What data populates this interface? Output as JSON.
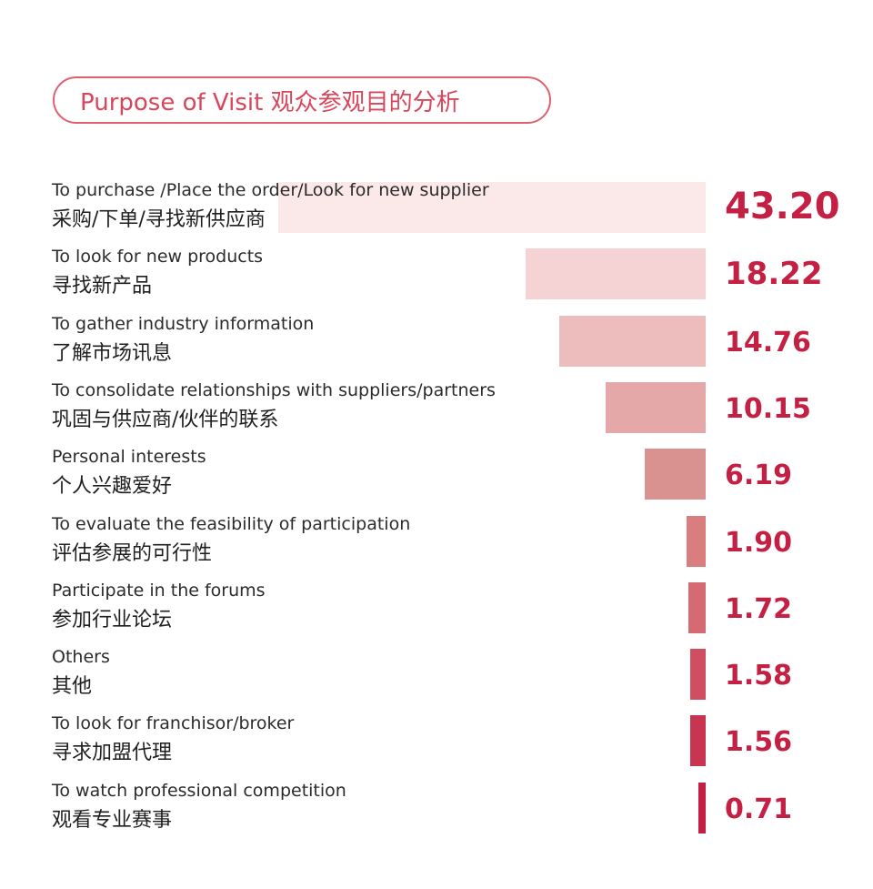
{
  "title": "Purpose of Visit 观众参观目的分析",
  "chart_data": {
    "type": "bar",
    "orientation": "horizontal",
    "title": "Purpose of Visit 观众参观目的分析",
    "categories": [
      {
        "en": "To purchase /Place the order/Look for new supplier",
        "zh": "采购/下单/寻找新供应商"
      },
      {
        "en": "To look for new products",
        "zh": "寻找新产品"
      },
      {
        "en": "To gather industry information",
        "zh": "了解市场讯息"
      },
      {
        "en": "To consolidate relationships with suppliers/partners",
        "zh": "巩固与供应商/伙伴的联系"
      },
      {
        "en": "Personal interests",
        "zh": "个人兴趣爱好"
      },
      {
        "en": "To evaluate the feasibility of participation",
        "zh": "评估参展的可行性"
      },
      {
        "en": "Participate in the forums",
        "zh": "参加行业论坛"
      },
      {
        "en": "Others",
        "zh": "其他"
      },
      {
        "en": "To look for franchisor/broker",
        "zh": "寻求加盟代理"
      },
      {
        "en": "To watch professional competition",
        "zh": "观看专业赛事"
      }
    ],
    "values": [
      43.2,
      18.22,
      14.76,
      10.15,
      6.19,
      1.9,
      1.72,
      1.58,
      1.56,
      0.71
    ],
    "value_labels": [
      "43.20",
      "18.22",
      "14.76",
      "10.15",
      "6.19",
      "1.90",
      "1.72",
      "1.58",
      "1.56",
      "0.71"
    ],
    "colors": [
      "#fbe9ea",
      "#f5d2d3",
      "#ecbdbc",
      "#e4a8a8",
      "#d9928f",
      "#d97d7f",
      "#d66a72",
      "#cf4f60",
      "#c83550",
      "#c41e44"
    ]
  }
}
